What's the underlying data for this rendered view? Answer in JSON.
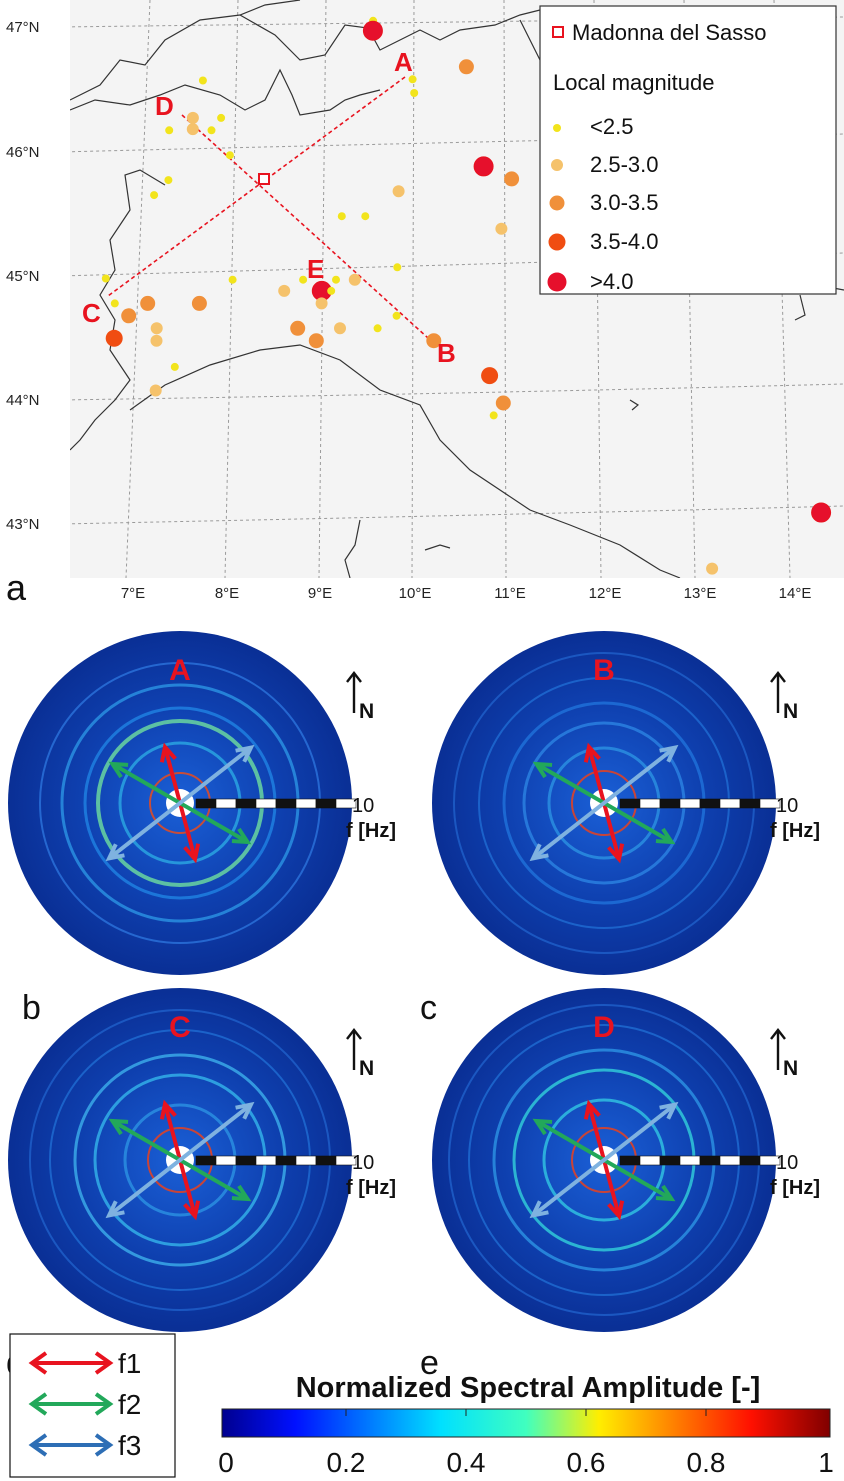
{
  "map": {
    "lat_labels": [
      "47°N",
      "46°N",
      "45°N",
      "44°N",
      "43°N"
    ],
    "lon_labels": [
      "7°E",
      "8°E",
      "9°E",
      "10°E",
      "11°E",
      "12°E",
      "13°E",
      "14°E"
    ],
    "panel_label": "a",
    "station_name": "Madonna del Sasso",
    "legend_title": "Local magnitude",
    "magnitude_classes": [
      {
        "label": "<2.5",
        "color": "#f2e41c"
      },
      {
        "label": "2.5-3.0",
        "color": "#f5c26b"
      },
      {
        "label": "3.0-3.5",
        "color": "#f0903a"
      },
      {
        "label": "3.5-4.0",
        "color": "#f04d12"
      },
      {
        "label": ">4.0",
        "color": "#e6102c"
      }
    ],
    "profile_points": [
      "A",
      "B",
      "C",
      "D",
      "E"
    ],
    "events": [
      {
        "lon": 9.5,
        "lat": 47.05,
        "mag": 0
      },
      {
        "lon": 9.5,
        "lat": 46.97,
        "mag": 4
      },
      {
        "lon": 10.5,
        "lat": 46.68,
        "mag": 2
      },
      {
        "lon": 9.93,
        "lat": 46.58,
        "mag": 0
      },
      {
        "lon": 9.95,
        "lat": 46.47,
        "mag": 0
      },
      {
        "lon": 7.7,
        "lat": 46.57,
        "mag": 0
      },
      {
        "lon": 7.6,
        "lat": 46.27,
        "mag": 1
      },
      {
        "lon": 7.6,
        "lat": 46.18,
        "mag": 1
      },
      {
        "lon": 7.35,
        "lat": 46.17,
        "mag": 0
      },
      {
        "lon": 7.8,
        "lat": 46.17,
        "mag": 0
      },
      {
        "lon": 7.9,
        "lat": 46.27,
        "mag": 0
      },
      {
        "lon": 8.0,
        "lat": 45.97,
        "mag": 0
      },
      {
        "lon": 7.2,
        "lat": 45.65,
        "mag": 0
      },
      {
        "lon": 7.35,
        "lat": 45.77,
        "mag": 0
      },
      {
        "lon": 10.7,
        "lat": 45.88,
        "mag": 4
      },
      {
        "lon": 11.0,
        "lat": 45.78,
        "mag": 2
      },
      {
        "lon": 9.8,
        "lat": 45.68,
        "mag": 1
      },
      {
        "lon": 9.45,
        "lat": 45.48,
        "mag": 0
      },
      {
        "lon": 9.2,
        "lat": 45.48,
        "mag": 0
      },
      {
        "lon": 10.9,
        "lat": 45.38,
        "mag": 1
      },
      {
        "lon": 9.8,
        "lat": 45.07,
        "mag": 0
      },
      {
        "lon": 9.0,
        "lat": 44.88,
        "mag": 4
      },
      {
        "lon": 9.0,
        "lat": 44.78,
        "mag": 1
      },
      {
        "lon": 9.1,
        "lat": 44.88,
        "mag": 0
      },
      {
        "lon": 9.15,
        "lat": 44.97,
        "mag": 0
      },
      {
        "lon": 9.35,
        "lat": 44.97,
        "mag": 1
      },
      {
        "lon": 8.8,
        "lat": 44.97,
        "mag": 0
      },
      {
        "lon": 8.6,
        "lat": 44.88,
        "mag": 1
      },
      {
        "lon": 8.05,
        "lat": 44.97,
        "mag": 0
      },
      {
        "lon": 6.7,
        "lat": 44.98,
        "mag": 0
      },
      {
        "lon": 6.8,
        "lat": 44.78,
        "mag": 0
      },
      {
        "lon": 7.15,
        "lat": 44.78,
        "mag": 2
      },
      {
        "lon": 7.7,
        "lat": 44.78,
        "mag": 2
      },
      {
        "lon": 6.95,
        "lat": 44.68,
        "mag": 2
      },
      {
        "lon": 6.8,
        "lat": 44.5,
        "mag": 3
      },
      {
        "lon": 7.25,
        "lat": 44.58,
        "mag": 1
      },
      {
        "lon": 7.25,
        "lat": 44.48,
        "mag": 1
      },
      {
        "lon": 8.75,
        "lat": 44.58,
        "mag": 2
      },
      {
        "lon": 8.95,
        "lat": 44.48,
        "mag": 2
      },
      {
        "lon": 9.2,
        "lat": 44.58,
        "mag": 1
      },
      {
        "lon": 9.6,
        "lat": 44.58,
        "mag": 0
      },
      {
        "lon": 9.8,
        "lat": 44.68,
        "mag": 0
      },
      {
        "lon": 10.2,
        "lat": 44.48,
        "mag": 2
      },
      {
        "lon": 7.45,
        "lat": 44.27,
        "mag": 0
      },
      {
        "lon": 7.25,
        "lat": 44.08,
        "mag": 1
      },
      {
        "lon": 10.8,
        "lat": 44.2,
        "mag": 3
      },
      {
        "lon": 10.95,
        "lat": 43.98,
        "mag": 2
      },
      {
        "lon": 10.85,
        "lat": 43.88,
        "mag": 0
      },
      {
        "lon": 14.35,
        "lat": 43.1,
        "mag": 4
      },
      {
        "lon": 13.2,
        "lat": 42.65,
        "mag": 1
      }
    ]
  },
  "spectra": [
    {
      "panel": "b",
      "point": "A",
      "tick_label": "10",
      "axis_label": "f [Hz]",
      "north": "N"
    },
    {
      "panel": "c",
      "point": "B",
      "tick_label": "10",
      "axis_label": "f [Hz]",
      "north": "N"
    },
    {
      "panel": "d",
      "point": "C",
      "tick_label": "10",
      "axis_label": "f [Hz]",
      "north": "N"
    },
    {
      "panel": "e",
      "point": "D",
      "tick_label": "10",
      "axis_label": "f [Hz]",
      "north": "N"
    }
  ],
  "arrow_legend": [
    {
      "label": "f1",
      "color": "#e8131f"
    },
    {
      "label": "f2",
      "color": "#22a85a"
    },
    {
      "label": "f3",
      "color": "#2d6eb5"
    }
  ],
  "colorbar": {
    "title": "Normalized Spectral Amplitude [-]",
    "ticks": [
      "0",
      "0.2",
      "0.4",
      "0.6",
      "0.8",
      "1"
    ]
  }
}
